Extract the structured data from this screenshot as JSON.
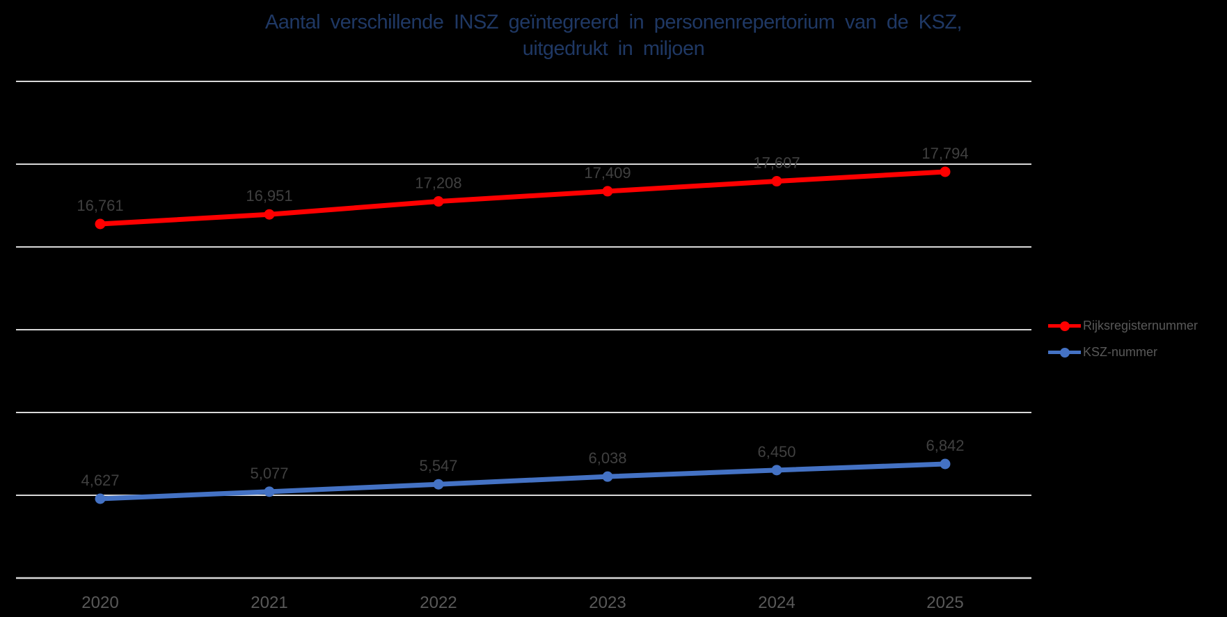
{
  "title": {
    "lines": [
      "Aantal verschillende INSZ geïntegreerd in personenrepertorium van de KSZ,",
      "uitgedrukt in miljoen"
    ]
  },
  "chart_data": {
    "type": "line",
    "title": "Aantal verschillende INSZ geïntegreerd in personenrepertorium van de KSZ, uitgedrukt in miljoen",
    "categories": [
      "2020",
      "2021",
      "2022",
      "2023",
      "2024",
      "2025"
    ],
    "series": [
      {
        "name": "Rijksregisternummer",
        "color": "#FF0000",
        "values": [
          16.761,
          16.951,
          17.208,
          17.409,
          17.607,
          17.794
        ],
        "labels": [
          "16,761",
          "16,951",
          "17,208",
          "17,409",
          "17,607",
          "17,794"
        ]
      },
      {
        "name": "KSZ-nummer",
        "color": "#4472C4",
        "values": [
          4.627,
          5.077,
          5.547,
          6.038,
          6.45,
          6.842
        ],
        "labels": [
          "4,627",
          "5,077",
          "5,547",
          "6,038",
          "6,450",
          "6,842"
        ]
      }
    ],
    "xlabel": "",
    "ylabel": "",
    "y_axis_tick_labels_visible": false,
    "gridlines": "horizontal",
    "legend_position": "right",
    "data_labels_visible": true
  },
  "colors": {
    "background": "#000000",
    "title": "#1F3864",
    "gridline": "#D9D9D9",
    "axis_line": "#D9D9D9",
    "data_label": "#404040",
    "category_label": "#595959",
    "legend_text": "#595959",
    "series_red": "#FF0000",
    "series_blue": "#4472C4"
  }
}
